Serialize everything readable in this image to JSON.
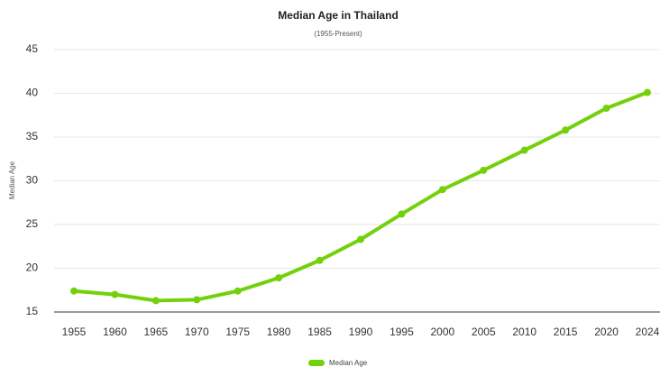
{
  "chart_data": {
    "type": "line",
    "title": "Median Age in Thailand",
    "subtitle": "(1955-Present)",
    "y_label": "Median Age",
    "categories": [
      "1955",
      "1960",
      "1965",
      "1970",
      "1975",
      "1980",
      "1985",
      "1990",
      "1995",
      "2000",
      "2005",
      "2010",
      "2015",
      "2020",
      "2024"
    ],
    "series": [
      {
        "name": "Median Age",
        "color": "#72d10b",
        "values": [
          17.4,
          17.0,
          16.3,
          16.4,
          17.4,
          18.9,
          20.9,
          23.3,
          26.2,
          29.0,
          31.2,
          33.5,
          35.8,
          38.3,
          40.1
        ]
      }
    ],
    "ylim": [
      15,
      45
    ],
    "yticks": [
      15,
      20,
      25,
      30,
      35,
      40,
      45
    ],
    "grid": true,
    "legend": "bottom"
  }
}
